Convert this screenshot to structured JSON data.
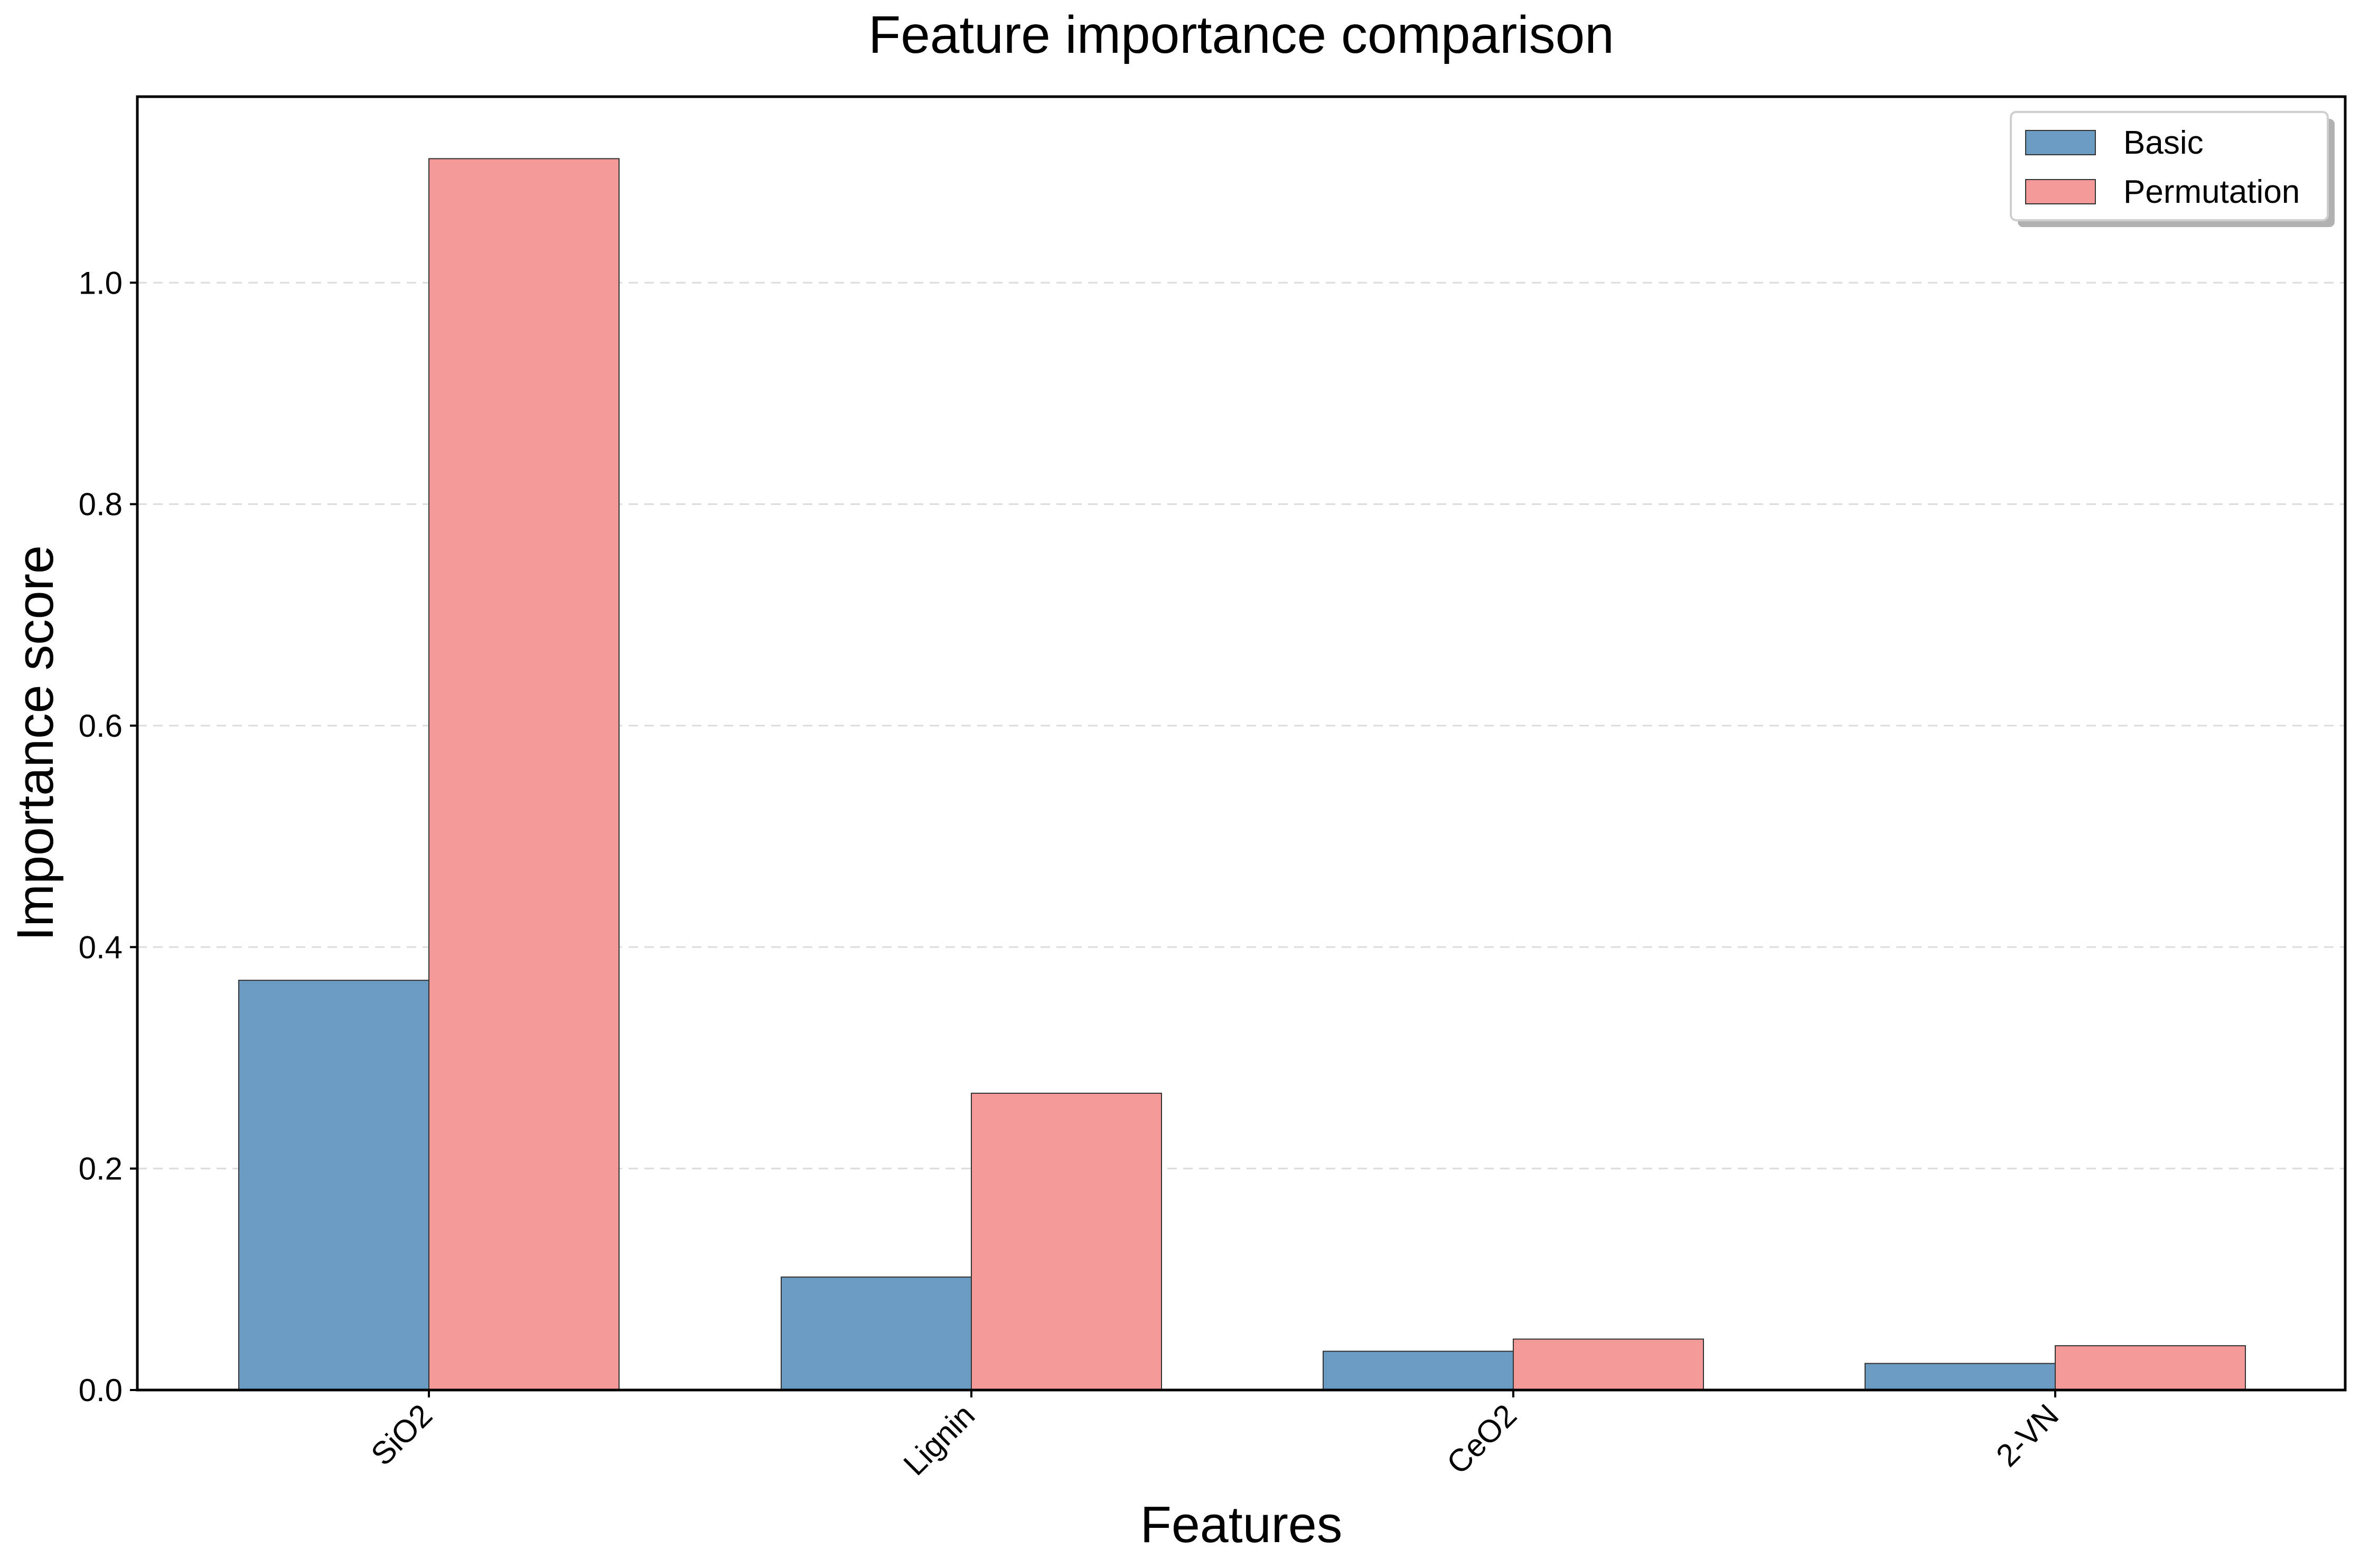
{
  "chart_data": {
    "type": "bar",
    "title": "Feature importance comparison",
    "xlabel": "Features",
    "ylabel": "Importance score",
    "categories": [
      "SiO2",
      "Lignin",
      "CeO2",
      "2-VN"
    ],
    "series": [
      {
        "name": "Basic",
        "values": [
          0.37,
          0.102,
          0.035,
          0.024
        ],
        "color": "#6b9bc3"
      },
      {
        "name": "Permutation",
        "values": [
          1.112,
          0.268,
          0.046,
          0.04
        ],
        "color": "#f39a99"
      }
    ],
    "ylim": [
      0,
      1.168
    ],
    "yticks": [
      {
        "value": 0.0,
        "label": "0.0"
      },
      {
        "value": 0.2,
        "label": "0.2"
      },
      {
        "value": 0.4,
        "label": "0.4"
      },
      {
        "value": 0.6,
        "label": "0.6"
      },
      {
        "value": 0.8,
        "label": "0.8"
      },
      {
        "value": 1.0,
        "label": "1.0"
      }
    ],
    "grid": "y-dashed",
    "legend": "top-right"
  }
}
